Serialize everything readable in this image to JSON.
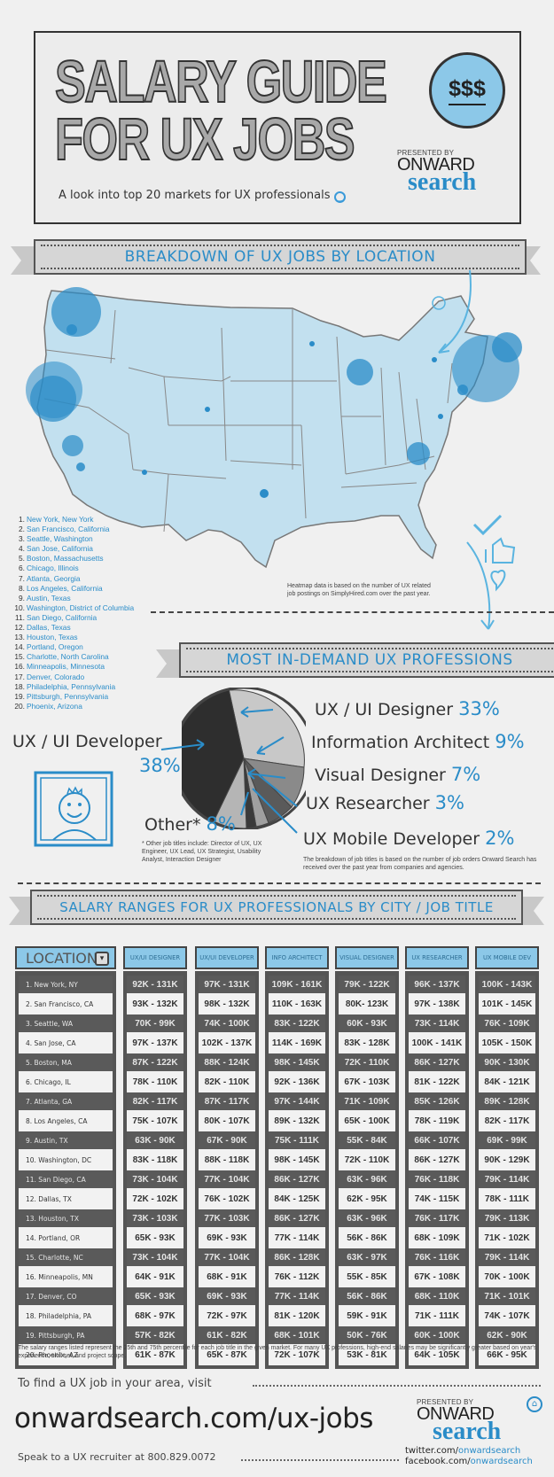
{
  "header": {
    "title_line1": "SALARY GUIDE",
    "title_line2": "FOR UX JOBS",
    "badge": "$$$",
    "subtitle": "A look into top 20 markets for UX professionals",
    "presented_by": "PRESENTED BY",
    "logo_top": "ONWARD",
    "logo_bottom": "search"
  },
  "location_section": {
    "ribbon_title": "BREAKDOWN OF UX JOBS BY LOCATION",
    "cities": [
      {
        "rank": "1.",
        "name": "New York, New York"
      },
      {
        "rank": "2.",
        "name": "San Francisco, California"
      },
      {
        "rank": "3.",
        "name": "Seattle, Washington"
      },
      {
        "rank": "4.",
        "name": "San Jose, California"
      },
      {
        "rank": "5.",
        "name": "Boston, Massachusetts"
      },
      {
        "rank": "6.",
        "name": "Chicago, Illinois"
      },
      {
        "rank": "7.",
        "name": "Atlanta, Georgia"
      },
      {
        "rank": "8.",
        "name": "Los Angeles, California"
      },
      {
        "rank": "9.",
        "name": "Austin, Texas"
      },
      {
        "rank": "10.",
        "name": "Washington, District of Columbia"
      },
      {
        "rank": "11.",
        "name": "San Diego, California"
      },
      {
        "rank": "12.",
        "name": "Dallas, Texas"
      },
      {
        "rank": "13.",
        "name": "Houston, Texas"
      },
      {
        "rank": "14.",
        "name": "Portland, Oregon"
      },
      {
        "rank": "15.",
        "name": "Charlotte, North Carolina"
      },
      {
        "rank": "16.",
        "name": "Minneapolis, Minnesota"
      },
      {
        "rank": "17.",
        "name": "Denver, Colorado"
      },
      {
        "rank": "18.",
        "name": "Philadelphia, Pennsylvania"
      },
      {
        "rank": "19.",
        "name": "Pittsburgh, Pennsylvania"
      },
      {
        "rank": "20.",
        "name": "Phoenix, Arizona"
      }
    ],
    "note_line1": "Heatmap data is based on the number of UX related",
    "note_line2": "job postings on SimplyHired.com over the past year."
  },
  "professions_section": {
    "ribbon_title": "MOST IN-DEMAND UX PROFESSIONS",
    "slices": [
      {
        "label": "UX / UI Designer",
        "pct": "33%"
      },
      {
        "label": "Information Architect",
        "pct": "9%"
      },
      {
        "label": "Visual Designer",
        "pct": "7%"
      },
      {
        "label": "UX Researcher",
        "pct": "3%"
      },
      {
        "label": "UX Mobile Developer",
        "pct": "2%"
      },
      {
        "label": "UX / UI Developer",
        "pct": "38%"
      },
      {
        "label": "Other*",
        "pct": "8%"
      }
    ],
    "other_note": "* Other job titles include: Director of UX, UX Engineer, UX Lead, UX Strategist, Usability Analyst, Interaction Designer",
    "breakdown_note": "The breakdown of job titles is based on the number of job orders Onward Search has received over the past year from companies and agencies."
  },
  "chart_data": {
    "type": "pie",
    "title": "MOST IN-DEMAND UX PROFESSIONS",
    "categories": [
      "UX / UI Developer",
      "UX / UI Designer",
      "Information Architect",
      "Visual Designer",
      "UX Researcher",
      "UX Mobile Developer",
      "Other*"
    ],
    "values": [
      38,
      33,
      9,
      7,
      3,
      2,
      8
    ],
    "unit": "%"
  },
  "salary_section": {
    "ribbon_title": "SALARY RANGES FOR UX PROFESSIONALS BY CITY / JOB TITLE",
    "location_header": "LOCATION",
    "columns": [
      "UX/UI DESIGNER",
      "UX/UI DEVELOPER",
      "INFO ARCHITECT",
      "VISUAL DESIGNER",
      "UX RESEARCHER",
      "UX MOBILE DEV"
    ],
    "rows": [
      {
        "city": "1. New York, NY",
        "v": [
          "92K - 131K",
          "97K - 131K",
          "109K - 161K",
          "79K - 122K",
          "96K - 137K",
          "100K - 143K"
        ]
      },
      {
        "city": "2. San Francisco, CA",
        "v": [
          "93K - 132K",
          "98K - 132K",
          "110K - 163K",
          "80K- 123K",
          "97K - 138K",
          "101K - 145K"
        ]
      },
      {
        "city": "3. Seattle, WA",
        "v": [
          "70K - 99K",
          "74K - 100K",
          "83K - 122K",
          "60K - 93K",
          "73K - 114K",
          "76K - 109K"
        ]
      },
      {
        "city": "4. San Jose, CA",
        "v": [
          "97K - 137K",
          "102K - 137K",
          "114K - 169K",
          "83K - 128K",
          "100K - 141K",
          "105K - 150K"
        ]
      },
      {
        "city": "5. Boston, MA",
        "v": [
          "87K - 122K",
          "88K - 124K",
          "98K - 145K",
          "72K - 110K",
          "86K - 127K",
          "90K - 130K"
        ]
      },
      {
        "city": "6. Chicago, IL",
        "v": [
          "78K - 110K",
          "82K - 110K",
          "92K - 136K",
          "67K - 103K",
          "81K - 122K",
          "84K - 121K"
        ]
      },
      {
        "city": "7. Atlanta, GA",
        "v": [
          "82K - 117K",
          "87K - 117K",
          "97K - 144K",
          "71K - 109K",
          "85K - 126K",
          "89K - 128K"
        ]
      },
      {
        "city": "8. Los Angeles, CA",
        "v": [
          "75K - 107K",
          "80K - 107K",
          "89K - 132K",
          "65K - 100K",
          "78K - 119K",
          "82K - 117K"
        ]
      },
      {
        "city": "9. Austin, TX",
        "v": [
          "63K - 90K",
          "67K - 90K",
          "75K - 111K",
          "55K - 84K",
          "66K - 107K",
          "69K - 99K"
        ]
      },
      {
        "city": "10. Washington, DC",
        "v": [
          "83K - 118K",
          "88K - 118K",
          "98K - 145K",
          "72K - 110K",
          "86K - 127K",
          "90K - 129K"
        ]
      },
      {
        "city": "11. San Diego, CA",
        "v": [
          "73K - 104K",
          "77K - 104K",
          "86K - 127K",
          "63K - 96K",
          "76K - 118K",
          "79K - 114K"
        ]
      },
      {
        "city": "12. Dallas, TX",
        "v": [
          "72K - 102K",
          "76K - 102K",
          "84K - 125K",
          "62K - 95K",
          "74K - 115K",
          "78K - 111K"
        ]
      },
      {
        "city": "13. Houston, TX",
        "v": [
          "73K - 103K",
          "77K - 103K",
          "86K - 127K",
          "63K - 96K",
          "76K - 117K",
          "79K - 113K"
        ]
      },
      {
        "city": "14. Portland, OR",
        "v": [
          "65K - 93K",
          "69K - 93K",
          "77K - 114K",
          "56K - 86K",
          "68K - 109K",
          "71K - 102K"
        ]
      },
      {
        "city": "15. Charlotte, NC",
        "v": [
          "73K - 104K",
          "77K - 104K",
          "86K - 128K",
          "63K - 97K",
          "76K - 116K",
          "79K - 114K"
        ]
      },
      {
        "city": "16. Minneapolis, MN",
        "v": [
          "64K - 91K",
          "68K - 91K",
          "76K - 112K",
          "55K - 85K",
          "67K - 108K",
          "70K - 100K"
        ]
      },
      {
        "city": "17. Denver, CO",
        "v": [
          "65K - 93K",
          "69K - 93K",
          "77K - 114K",
          "56K - 86K",
          "68K - 110K",
          "71K - 101K"
        ]
      },
      {
        "city": "18. Philadelphia, PA",
        "v": [
          "68K - 97K",
          "72K - 97K",
          "81K - 120K",
          "59K - 91K",
          "71K - 111K",
          "74K - 107K"
        ]
      },
      {
        "city": "19. Pittsburgh, PA",
        "v": [
          "57K - 82K",
          "61K - 82K",
          "68K - 101K",
          "50K - 76K",
          "60K - 100K",
          "62K - 90K"
        ]
      },
      {
        "city": "20. Phoenix, AZ",
        "v": [
          "61K - 87K",
          "65K - 87K",
          "72K - 107K",
          "53K - 81K",
          "64K - 105K",
          "66K - 95K"
        ]
      }
    ],
    "note": "The salary ranges listed represent the 25th and 75th percentile for each job title in the given market. For many UX professions, high-end salaries may be significantly greater based on year's experience, skill set, and project scope."
  },
  "footer": {
    "find_text": "To find a UX job in your area, visit",
    "url": "onwardsearch.com/ux-jobs",
    "speak_text": "Speak to a UX recruiter at 800.829.0072",
    "presented_by": "PRESENTED BY",
    "logo_top": "ONWARD",
    "logo_bottom": "search",
    "twitter_prefix": "twitter.com/",
    "twitter_handle": "onwardsearch",
    "facebook_prefix": "facebook.com/",
    "facebook_handle": "onwardsearch"
  },
  "colors": {
    "accent_blue": "#2a8cc8",
    "light_blue": "#8cc8e8",
    "map_fill": "#c2e0ef",
    "dark_row": "#5a5a5a",
    "background": "#f0f0f0"
  }
}
